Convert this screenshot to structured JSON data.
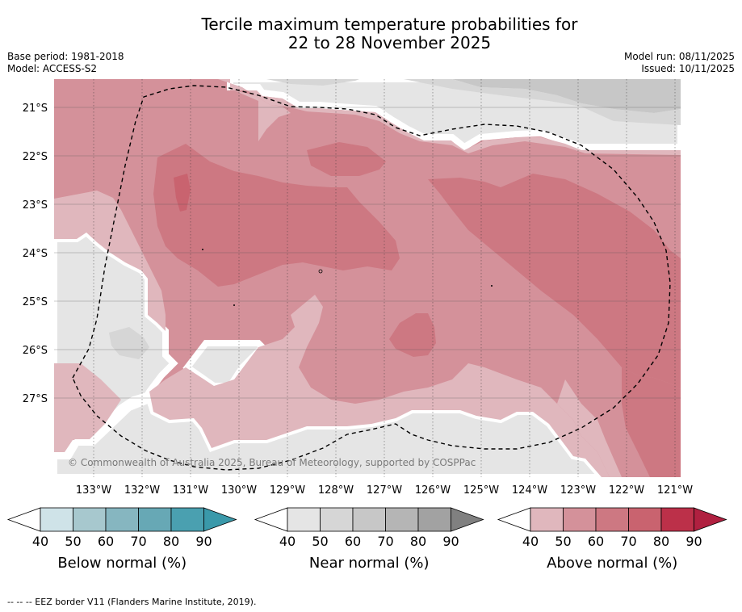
{
  "title": {
    "line1": "Tercile maximum temperature probabilities for",
    "line2": "22 to 28 November 2025"
  },
  "meta": {
    "base_period": "Base period: 1981-2018",
    "model": "Model: ACCESS-S2",
    "model_run": "Model run: 08/11/2025",
    "issued": "Issued: 10/11/2025"
  },
  "map": {
    "lat_labels": [
      "21°S",
      "22°S",
      "23°S",
      "24°S",
      "25°S",
      "26°S",
      "27°S"
    ],
    "lon_labels": [
      "133°W",
      "132°W",
      "131°W",
      "130°W",
      "129°W",
      "128°W",
      "127°W",
      "126°W",
      "125°W",
      "124°W",
      "123°W",
      "122°W",
      "121°W"
    ],
    "copyright": "© Commonwealth of Australia 2025, Bureau of Meteorology, supported by COSPPac"
  },
  "legends": [
    {
      "label": "Below normal (%)",
      "ticks": [
        "40",
        "50",
        "60",
        "70",
        "80",
        "90"
      ],
      "colors": [
        "#ffffff",
        "#cfe3e8",
        "#a7c8ce",
        "#86b6c0",
        "#67a8b5",
        "#4aa0b0",
        "#3a99aa"
      ]
    },
    {
      "label": "Near normal (%)",
      "ticks": [
        "40",
        "50",
        "60",
        "70",
        "80",
        "90"
      ],
      "colors": [
        "#ffffff",
        "#e5e5e5",
        "#d6d6d6",
        "#c7c7c7",
        "#b5b5b5",
        "#a2a2a2",
        "#808080"
      ]
    },
    {
      "label": "Above normal (%)",
      "ticks": [
        "40",
        "50",
        "60",
        "70",
        "80",
        "90"
      ],
      "colors": [
        "#ffffff",
        "#e0b7bd",
        "#d4919a",
        "#cd7882",
        "#c9636f",
        "#bc3049",
        "#b02040"
      ]
    }
  ],
  "footnote": "--  --  -- EEZ border V11 (Flanders Marine Institute, 2019).",
  "colors": {
    "nn40": "#e5e5e5",
    "nn50": "#d6d6d6",
    "nn60": "#c7c7c7",
    "an40": "#e0b7bd",
    "an50": "#d4919a",
    "an60": "#cd7882",
    "an70": "#c9636f",
    "an80": "#bc3049"
  }
}
